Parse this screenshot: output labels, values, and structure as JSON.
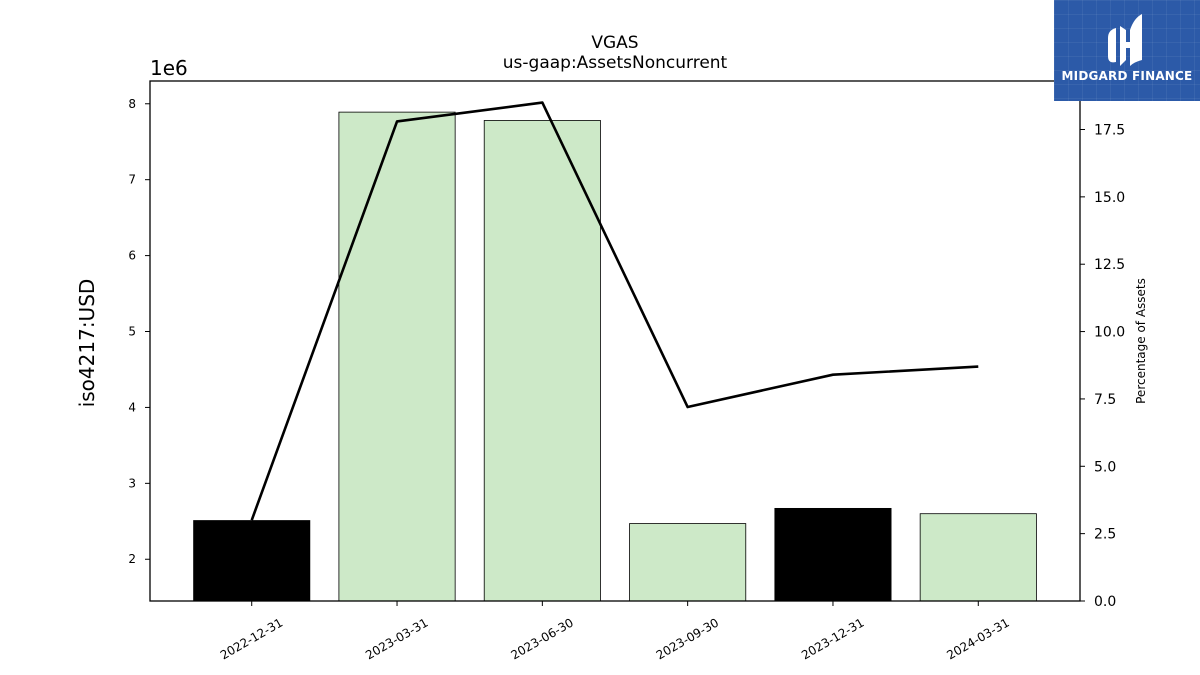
{
  "chart_data": {
    "type": "bar",
    "title": "VGAS",
    "subtitle": "us-gaap:AssetsNoncurrent",
    "ylabel": "iso4217:USD",
    "y_offset_label": "1e6",
    "y2label": "Percentage of Assets",
    "categories": [
      "2022-12-31",
      "2023-03-31",
      "2023-06-30",
      "2023-09-30",
      "2023-12-31",
      "2024-03-31"
    ],
    "values": [
      2510000,
      7890000,
      7780000,
      2470000,
      2670000,
      2600000
    ],
    "bar_colors": [
      "#000000",
      "#cde9c8",
      "#cde9c8",
      "#cde9c8",
      "#000000",
      "#cde9c8"
    ],
    "percent_series": [
      3.0,
      17.8,
      18.5,
      7.2,
      8.4,
      8.7
    ],
    "ylim": [
      1450000,
      8300000
    ],
    "y_ticks": [
      2000000,
      3000000,
      4000000,
      5000000,
      6000000,
      7000000,
      8000000
    ],
    "y_tick_labels": [
      "2",
      "3",
      "4",
      "5",
      "6",
      "7",
      "8"
    ],
    "y2lim": [
      0,
      19.3
    ],
    "y2_ticks": [
      0,
      2.5,
      5,
      7.5,
      10,
      12.5,
      15,
      17.5
    ],
    "y2_tick_labels": [
      "0.0",
      "2.5",
      "5.0",
      "7.5",
      "10.0",
      "12.5",
      "15.0",
      "17.5"
    ],
    "grid": false
  },
  "logo": {
    "text": "MIDGARD FINANCE",
    "color": "#2c5aa8"
  }
}
